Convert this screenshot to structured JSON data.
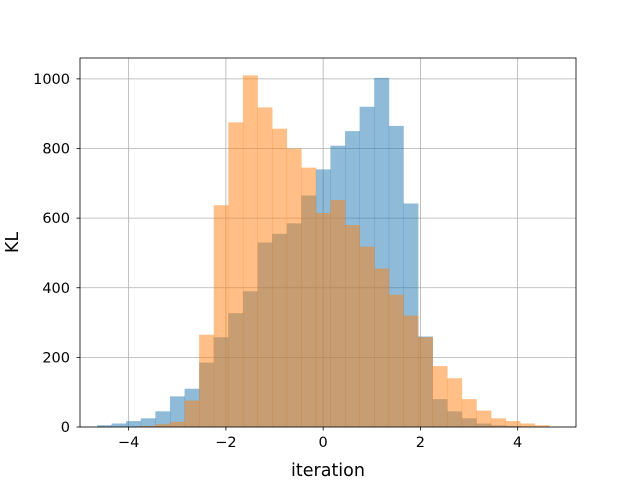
{
  "chart_data": {
    "type": "histogram",
    "xlabel": "iteration",
    "ylabel": "KL",
    "xlim": [
      -5.0,
      5.2
    ],
    "ylim": [
      0,
      1060
    ],
    "xticks": [
      -4,
      -2,
      0,
      2,
      4
    ],
    "yticks": [
      0,
      200,
      400,
      600,
      800,
      1000
    ],
    "grid": true,
    "overlay_color": "#c49a6c",
    "series": [
      {
        "color": "#1f77b4",
        "alpha": 0.5,
        "bin_edges": [
          -4.65,
          -4.35,
          -4.05,
          -3.75,
          -3.45,
          -3.15,
          -2.85,
          -2.55,
          -2.25,
          -1.95,
          -1.65,
          -1.35,
          -1.05,
          -0.75,
          -0.45,
          -0.15,
          0.15,
          0.45,
          0.75,
          1.05,
          1.35,
          1.65,
          1.95,
          2.25,
          2.55,
          2.85,
          3.15,
          3.45,
          3.75,
          4.05,
          4.35
        ],
        "counts": [
          5,
          10,
          17,
          25,
          45,
          88,
          110,
          185,
          258,
          327,
          390,
          530,
          555,
          585,
          665,
          740,
          808,
          850,
          920,
          1003,
          865,
          642,
          260,
          80,
          45,
          25,
          10,
          5,
          3,
          1
        ]
      },
      {
        "color": "#ff7f0e",
        "alpha": 0.5,
        "bin_edges": [
          -4.05,
          -3.75,
          -3.45,
          -3.15,
          -2.85,
          -2.55,
          -2.25,
          -1.95,
          -1.65,
          -1.35,
          -1.05,
          -0.75,
          -0.45,
          -0.15,
          0.15,
          0.45,
          0.75,
          1.05,
          1.35,
          1.65,
          1.95,
          2.25,
          2.55,
          2.85,
          3.15,
          3.45,
          3.75,
          4.05,
          4.35,
          4.65
        ],
        "counts": [
          1,
          3,
          8,
          15,
          76,
          265,
          637,
          875,
          1010,
          918,
          857,
          800,
          745,
          615,
          652,
          580,
          518,
          455,
          380,
          320,
          258,
          175,
          140,
          80,
          47,
          25,
          17,
          10,
          5
        ]
      }
    ]
  }
}
